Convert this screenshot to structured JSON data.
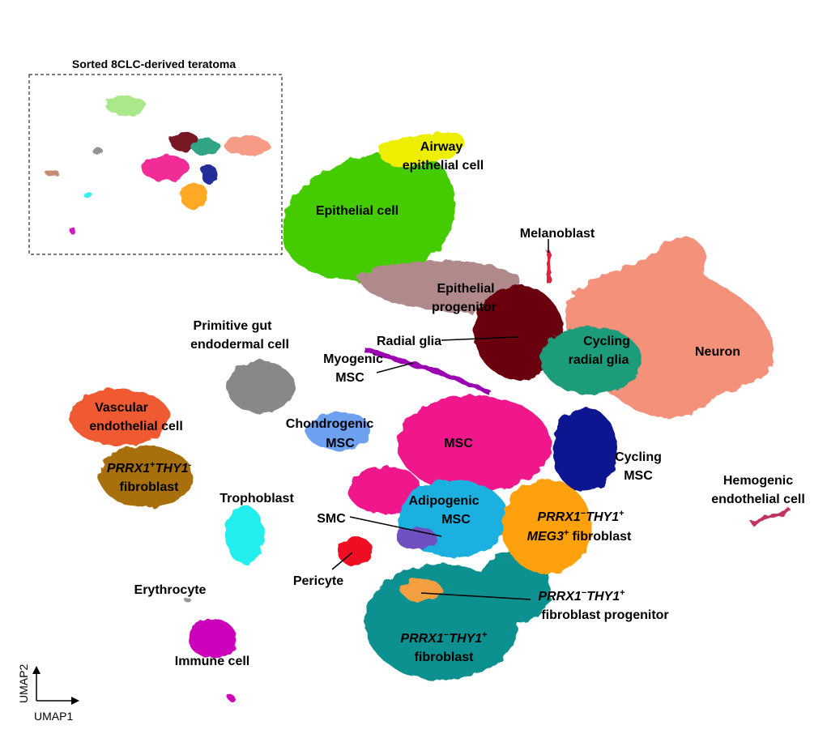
{
  "inset": {
    "title": "Sorted 8CLC-derived teratoma"
  },
  "axes": {
    "x_label": "UMAP1",
    "y_label": "UMAP2"
  },
  "clusters": [
    {
      "label": [
        [
          {
            "text": "Airway"
          }
        ],
        [
          {
            "text": "epithelial cell"
          }
        ]
      ]
    },
    {
      "label": [
        [
          {
            "text": "Epithelial cell"
          }
        ]
      ]
    },
    {
      "label": [
        [
          {
            "text": "Melanoblast"
          }
        ]
      ]
    },
    {
      "label": [
        [
          {
            "text": "Epithelial"
          }
        ],
        [
          {
            "text": "progenitor"
          }
        ]
      ]
    },
    {
      "label": [
        [
          {
            "text": "Primitive gut"
          }
        ],
        [
          {
            "text": "endodermal cell"
          }
        ]
      ]
    },
    {
      "label": [
        [
          {
            "text": "Radial glia"
          }
        ]
      ]
    },
    {
      "label": [
        [
          {
            "text": "Myogenic"
          }
        ],
        [
          {
            "text": "MSC"
          }
        ]
      ]
    },
    {
      "label": [
        [
          {
            "text": "Cycling"
          }
        ],
        [
          {
            "text": "radial glia"
          }
        ]
      ]
    },
    {
      "label": [
        [
          {
            "text": "Neuron"
          }
        ]
      ]
    },
    {
      "label": [
        [
          {
            "text": "Vascular"
          }
        ],
        [
          {
            "text": "endothelial cell"
          }
        ]
      ]
    },
    {
      "label": [
        [
          {
            "text": "Chondrogenic"
          }
        ],
        [
          {
            "text": "MSC"
          }
        ]
      ]
    },
    {
      "label": [
        [
          {
            "text": "MSC"
          }
        ]
      ]
    },
    {
      "label": [
        [
          {
            "text": "Cycling"
          }
        ],
        [
          {
            "text": "MSC"
          }
        ]
      ]
    },
    {
      "label": [
        [
          {
            "text": "PRRX1",
            "italic": true
          },
          {
            "text": "+",
            "sup": true
          },
          {
            "text": "THY1",
            "italic": true
          },
          {
            "text": "-",
            "sup": true
          }
        ],
        [
          {
            "text": "fibroblast"
          }
        ]
      ]
    },
    {
      "label": [
        [
          {
            "text": "Hemogenic"
          }
        ],
        [
          {
            "text": "endothelial cell"
          }
        ]
      ]
    },
    {
      "label": [
        [
          {
            "text": "Trophoblast"
          }
        ]
      ]
    },
    {
      "label": [
        [
          {
            "text": "Adipogenic"
          }
        ],
        [
          {
            "text": "MSC"
          }
        ]
      ]
    },
    {
      "label": [
        [
          {
            "text": "SMC"
          }
        ]
      ]
    },
    {
      "label": [
        [
          {
            "text": "PRRX1",
            "italic": true
          },
          {
            "text": "−",
            "sup": true
          },
          {
            "text": "THY1",
            "italic": true
          },
          {
            "text": "+",
            "sup": true
          }
        ],
        [
          {
            "text": "MEG3",
            "italic": true
          },
          {
            "text": "+",
            "sup": true
          },
          {
            "text": "fibroblast"
          }
        ]
      ]
    },
    {
      "label": [
        [
          {
            "text": "Pericyte"
          }
        ]
      ]
    },
    {
      "label": [
        [
          {
            "text": "PRRX1",
            "italic": true
          },
          {
            "text": "−",
            "sup": true
          },
          {
            "text": "THY1",
            "italic": true
          },
          {
            "text": "+",
            "sup": true
          }
        ],
        [
          {
            "text": "fibroblast progenitor"
          }
        ]
      ]
    },
    {
      "label": [
        [
          {
            "text": "Erythrocyte"
          }
        ]
      ]
    },
    {
      "label": [
        [
          {
            "text": "PRRX1",
            "italic": true
          },
          {
            "text": "−",
            "sup": true
          },
          {
            "text": "THY1",
            "italic": true
          },
          {
            "text": "+",
            "sup": true
          }
        ],
        [
          {
            "text": "fibroblast"
          }
        ]
      ]
    },
    {
      "label": [
        [
          {
            "text": "Immune cell"
          }
        ]
      ]
    }
  ]
}
